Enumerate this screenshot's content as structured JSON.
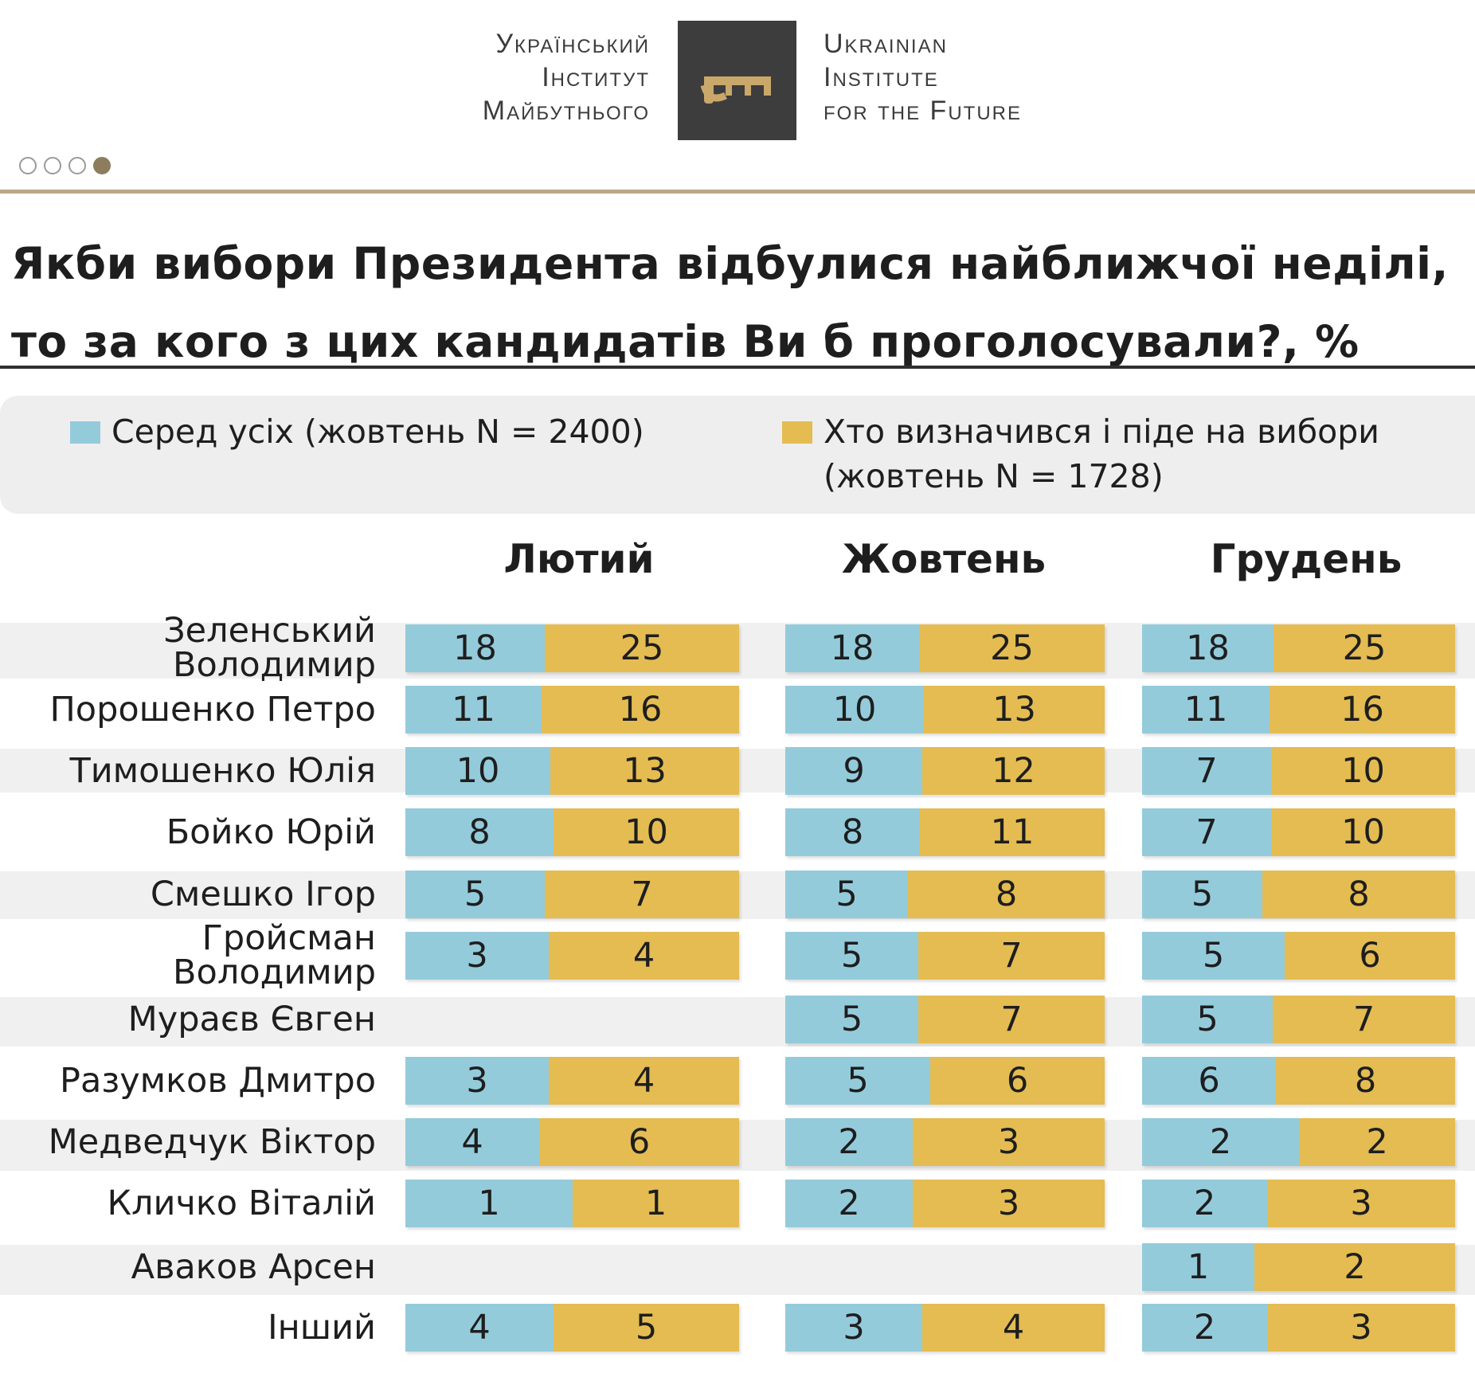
{
  "logo": {
    "ua_lines": [
      "Український",
      "Інститут",
      "Майбутнього"
    ],
    "en_lines": [
      "Ukrainian",
      "Institute",
      "for the Future"
    ],
    "mark_icon": "key-icon",
    "mark_color": "#3e3d3e",
    "key_color": "#c9a86a"
  },
  "pagination": {
    "total": 4,
    "active_index": 3
  },
  "title": {
    "line1": "Якби вибори Президента відбулися найближчої неділі,",
    "line2": "то за кого з цих кандидатів Ви б проголосували?, %"
  },
  "legend": {
    "all": {
      "label": "Серед усіх (жовтень N = 2400)",
      "color": "#94cbdb"
    },
    "decided": {
      "label_line1": "Хто визначився і піде на вибори",
      "label_line2": "(жовтень N = 1728)",
      "color": "#e4bc52"
    }
  },
  "chart_data": {
    "type": "bar",
    "title": "Якби вибори Президента відбулися найближчої неділі, то за кого з цих кандидатів Ви б проголосували?, %",
    "orientation": "horizontal-stacked",
    "groups": [
      "Лютий",
      "Жовтень",
      "Грудень"
    ],
    "categories": [
      "Зеленський Володимир",
      "Порошенко Петро",
      "Тимошенко Юлія",
      "Бойко Юрій",
      "Смешко Ігор",
      "Гройсман Володимир",
      "Мураєв Євген",
      "Разумков Дмитро",
      "Медведчук Віктор",
      "Кличко Віталій",
      "Аваков Арсен",
      "Інший"
    ],
    "series": [
      {
        "name": "Серед усіх (жовтень N = 2400)",
        "color": "#94cbdb",
        "values": {
          "Лютий": [
            18,
            11,
            10,
            8,
            5,
            3,
            null,
            3,
            4,
            1,
            null,
            4
          ],
          "Жовтень": [
            18,
            10,
            9,
            8,
            5,
            5,
            5,
            5,
            2,
            2,
            null,
            3
          ],
          "Грудень": [
            18,
            11,
            7,
            7,
            5,
            5,
            5,
            6,
            2,
            2,
            1,
            2
          ]
        }
      },
      {
        "name": "Хто визначився і піде на вибори (жовтень N = 1728)",
        "color": "#e4bc52",
        "values": {
          "Лютий": [
            25,
            16,
            13,
            10,
            7,
            4,
            null,
            4,
            6,
            1,
            null,
            5
          ],
          "Жовтень": [
            25,
            13,
            12,
            11,
            8,
            7,
            7,
            6,
            3,
            3,
            null,
            4
          ],
          "Грудень": [
            25,
            16,
            10,
            10,
            8,
            6,
            7,
            8,
            2,
            3,
            2,
            3
          ]
        }
      }
    ],
    "unit": "%"
  }
}
